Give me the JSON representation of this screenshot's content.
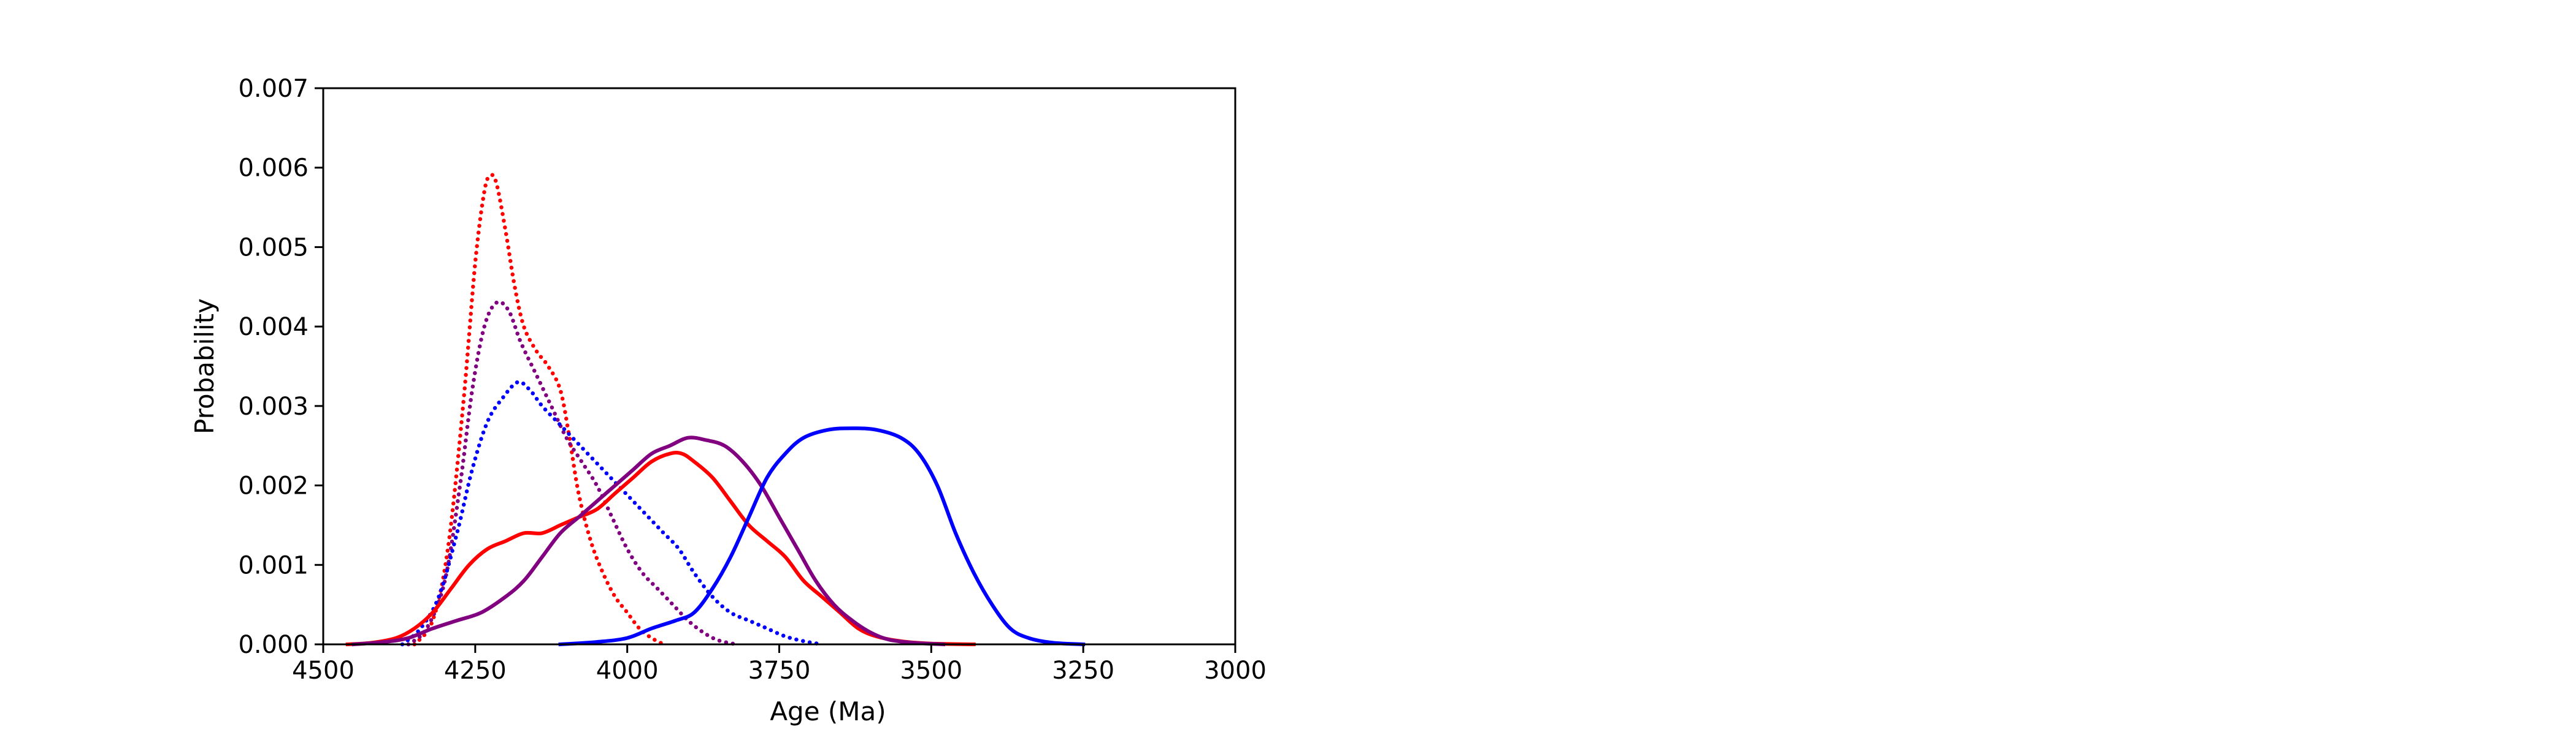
{
  "chart_data": {
    "type": "line",
    "title": "",
    "xlabel": "Age (Ma)",
    "ylabel": "Probability",
    "xlim": [
      4500,
      3000
    ],
    "ylim": [
      0,
      0.007
    ],
    "x_inverted": true,
    "grid": false,
    "legend": "none",
    "x_ticks": [
      4500,
      4250,
      4000,
      3750,
      3500,
      3250,
      3000
    ],
    "x_tick_labels": [
      "4500",
      "4250",
      "4000",
      "3750",
      "3500",
      "3250",
      "3000"
    ],
    "y_ticks": [
      0,
      0.001,
      0.002,
      0.003,
      0.004,
      0.005,
      0.006,
      0.007
    ],
    "y_tick_labels": [
      "0.000",
      "0.001",
      "0.002",
      "0.003",
      "0.004",
      "0.005",
      "0.006",
      "0.007"
    ],
    "series": [
      {
        "color": "#ff0000",
        "style": "dotted",
        "points": [
          [
            4350,
            0.0
          ],
          [
            4320,
            0.0003
          ],
          [
            4295,
            0.0012
          ],
          [
            4270,
            0.003
          ],
          [
            4250,
            0.0048
          ],
          [
            4235,
            0.0057
          ],
          [
            4225,
            0.0059
          ],
          [
            4215,
            0.0058
          ],
          [
            4200,
            0.0052
          ],
          [
            4185,
            0.0045
          ],
          [
            4170,
            0.004
          ],
          [
            4150,
            0.0037
          ],
          [
            4130,
            0.0035
          ],
          [
            4110,
            0.0032
          ],
          [
            4095,
            0.0026
          ],
          [
            4080,
            0.0019
          ],
          [
            4060,
            0.0013
          ],
          [
            4040,
            0.0009
          ],
          [
            4020,
            0.0006
          ],
          [
            4000,
            0.0004
          ],
          [
            3980,
            0.0002
          ],
          [
            3960,
            8e-05
          ],
          [
            3940,
            0.0
          ]
        ]
      },
      {
        "color": "#800080",
        "style": "dotted",
        "points": [
          [
            4360,
            0.0
          ],
          [
            4330,
            0.0002
          ],
          [
            4300,
            0.0008
          ],
          [
            4275,
            0.002
          ],
          [
            4255,
            0.0032
          ],
          [
            4235,
            0.004
          ],
          [
            4215,
            0.0043
          ],
          [
            4195,
            0.0042
          ],
          [
            4175,
            0.0038
          ],
          [
            4150,
            0.0034
          ],
          [
            4125,
            0.003
          ],
          [
            4100,
            0.0026
          ],
          [
            4075,
            0.0023
          ],
          [
            4050,
            0.002
          ],
          [
            4025,
            0.0016
          ],
          [
            4000,
            0.0012
          ],
          [
            3975,
            0.0009
          ],
          [
            3950,
            0.0007
          ],
          [
            3925,
            0.0005
          ],
          [
            3900,
            0.0003
          ],
          [
            3875,
            0.00015
          ],
          [
            3850,
            5e-05
          ],
          [
            3820,
            0.0
          ]
        ]
      },
      {
        "color": "#0000ff",
        "style": "dotted",
        "points": [
          [
            4370,
            0.0
          ],
          [
            4340,
            0.0002
          ],
          [
            4310,
            0.0006
          ],
          [
            4280,
            0.0014
          ],
          [
            4255,
            0.0022
          ],
          [
            4230,
            0.0028
          ],
          [
            4205,
            0.0031
          ],
          [
            4180,
            0.0033
          ],
          [
            4160,
            0.0032
          ],
          [
            4140,
            0.003
          ],
          [
            4115,
            0.0028
          ],
          [
            4090,
            0.0026
          ],
          [
            4065,
            0.0024
          ],
          [
            4040,
            0.0022
          ],
          [
            4015,
            0.002
          ],
          [
            3990,
            0.0018
          ],
          [
            3965,
            0.0016
          ],
          [
            3940,
            0.0014
          ],
          [
            3915,
            0.0012
          ],
          [
            3890,
            0.0009
          ],
          [
            3860,
            0.0006
          ],
          [
            3830,
            0.0004
          ],
          [
            3800,
            0.0003
          ],
          [
            3770,
            0.0002
          ],
          [
            3740,
            0.0001
          ],
          [
            3710,
            4e-05
          ],
          [
            3680,
            0.0
          ]
        ]
      },
      {
        "color": "#ff0000",
        "style": "solid",
        "points": [
          [
            4460,
            0.0
          ],
          [
            4420,
            2e-05
          ],
          [
            4380,
            8e-05
          ],
          [
            4350,
            0.0002
          ],
          [
            4320,
            0.0004
          ],
          [
            4290,
            0.0007
          ],
          [
            4260,
            0.001
          ],
          [
            4230,
            0.0012
          ],
          [
            4200,
            0.0013
          ],
          [
            4170,
            0.0014
          ],
          [
            4140,
            0.0014
          ],
          [
            4110,
            0.0015
          ],
          [
            4080,
            0.0016
          ],
          [
            4050,
            0.0017
          ],
          [
            4020,
            0.0019
          ],
          [
            3990,
            0.0021
          ],
          [
            3960,
            0.0023
          ],
          [
            3930,
            0.0024
          ],
          [
            3910,
            0.0024
          ],
          [
            3890,
            0.0023
          ],
          [
            3860,
            0.0021
          ],
          [
            3830,
            0.0018
          ],
          [
            3800,
            0.0015
          ],
          [
            3770,
            0.0013
          ],
          [
            3740,
            0.0011
          ],
          [
            3710,
            0.0008
          ],
          [
            3680,
            0.0006
          ],
          [
            3650,
            0.0004
          ],
          [
            3620,
            0.0002
          ],
          [
            3590,
            0.0001
          ],
          [
            3550,
            4e-05
          ],
          [
            3500,
            1e-05
          ],
          [
            3430,
            0.0
          ]
        ]
      },
      {
        "color": "#800080",
        "style": "solid",
        "points": [
          [
            4450,
            0.0
          ],
          [
            4400,
            3e-05
          ],
          [
            4360,
            8e-05
          ],
          [
            4320,
            0.0002
          ],
          [
            4280,
            0.0003
          ],
          [
            4240,
            0.0004
          ],
          [
            4200,
            0.0006
          ],
          [
            4170,
            0.0008
          ],
          [
            4140,
            0.0011
          ],
          [
            4110,
            0.0014
          ],
          [
            4080,
            0.0016
          ],
          [
            4050,
            0.0018
          ],
          [
            4020,
            0.002
          ],
          [
            3990,
            0.0022
          ],
          [
            3960,
            0.0024
          ],
          [
            3930,
            0.0025
          ],
          [
            3900,
            0.0026
          ],
          [
            3870,
            0.00257
          ],
          [
            3840,
            0.0025
          ],
          [
            3810,
            0.0023
          ],
          [
            3780,
            0.002
          ],
          [
            3750,
            0.0016
          ],
          [
            3720,
            0.0012
          ],
          [
            3690,
            0.0008
          ],
          [
            3660,
            0.0005
          ],
          [
            3630,
            0.0003
          ],
          [
            3600,
            0.00015
          ],
          [
            3570,
            6e-05
          ],
          [
            3530,
            2e-05
          ],
          [
            3480,
            0.0
          ]
        ]
      },
      {
        "color": "#0000ff",
        "style": "solid",
        "points": [
          [
            4110,
            0.0
          ],
          [
            4050,
            3e-05
          ],
          [
            4000,
            8e-05
          ],
          [
            3960,
            0.0002
          ],
          [
            3920,
            0.0003
          ],
          [
            3890,
            0.0004
          ],
          [
            3860,
            0.0007
          ],
          [
            3830,
            0.0011
          ],
          [
            3800,
            0.0016
          ],
          [
            3770,
            0.0021
          ],
          [
            3740,
            0.0024
          ],
          [
            3710,
            0.0026
          ],
          [
            3670,
            0.0027
          ],
          [
            3630,
            0.00272
          ],
          [
            3590,
            0.0027
          ],
          [
            3550,
            0.0026
          ],
          [
            3520,
            0.0024
          ],
          [
            3490,
            0.002
          ],
          [
            3460,
            0.0014
          ],
          [
            3430,
            0.0009
          ],
          [
            3400,
            0.0005
          ],
          [
            3370,
            0.0002
          ],
          [
            3340,
            8e-05
          ],
          [
            3300,
            2e-05
          ],
          [
            3250,
            0.0
          ]
        ]
      }
    ]
  }
}
